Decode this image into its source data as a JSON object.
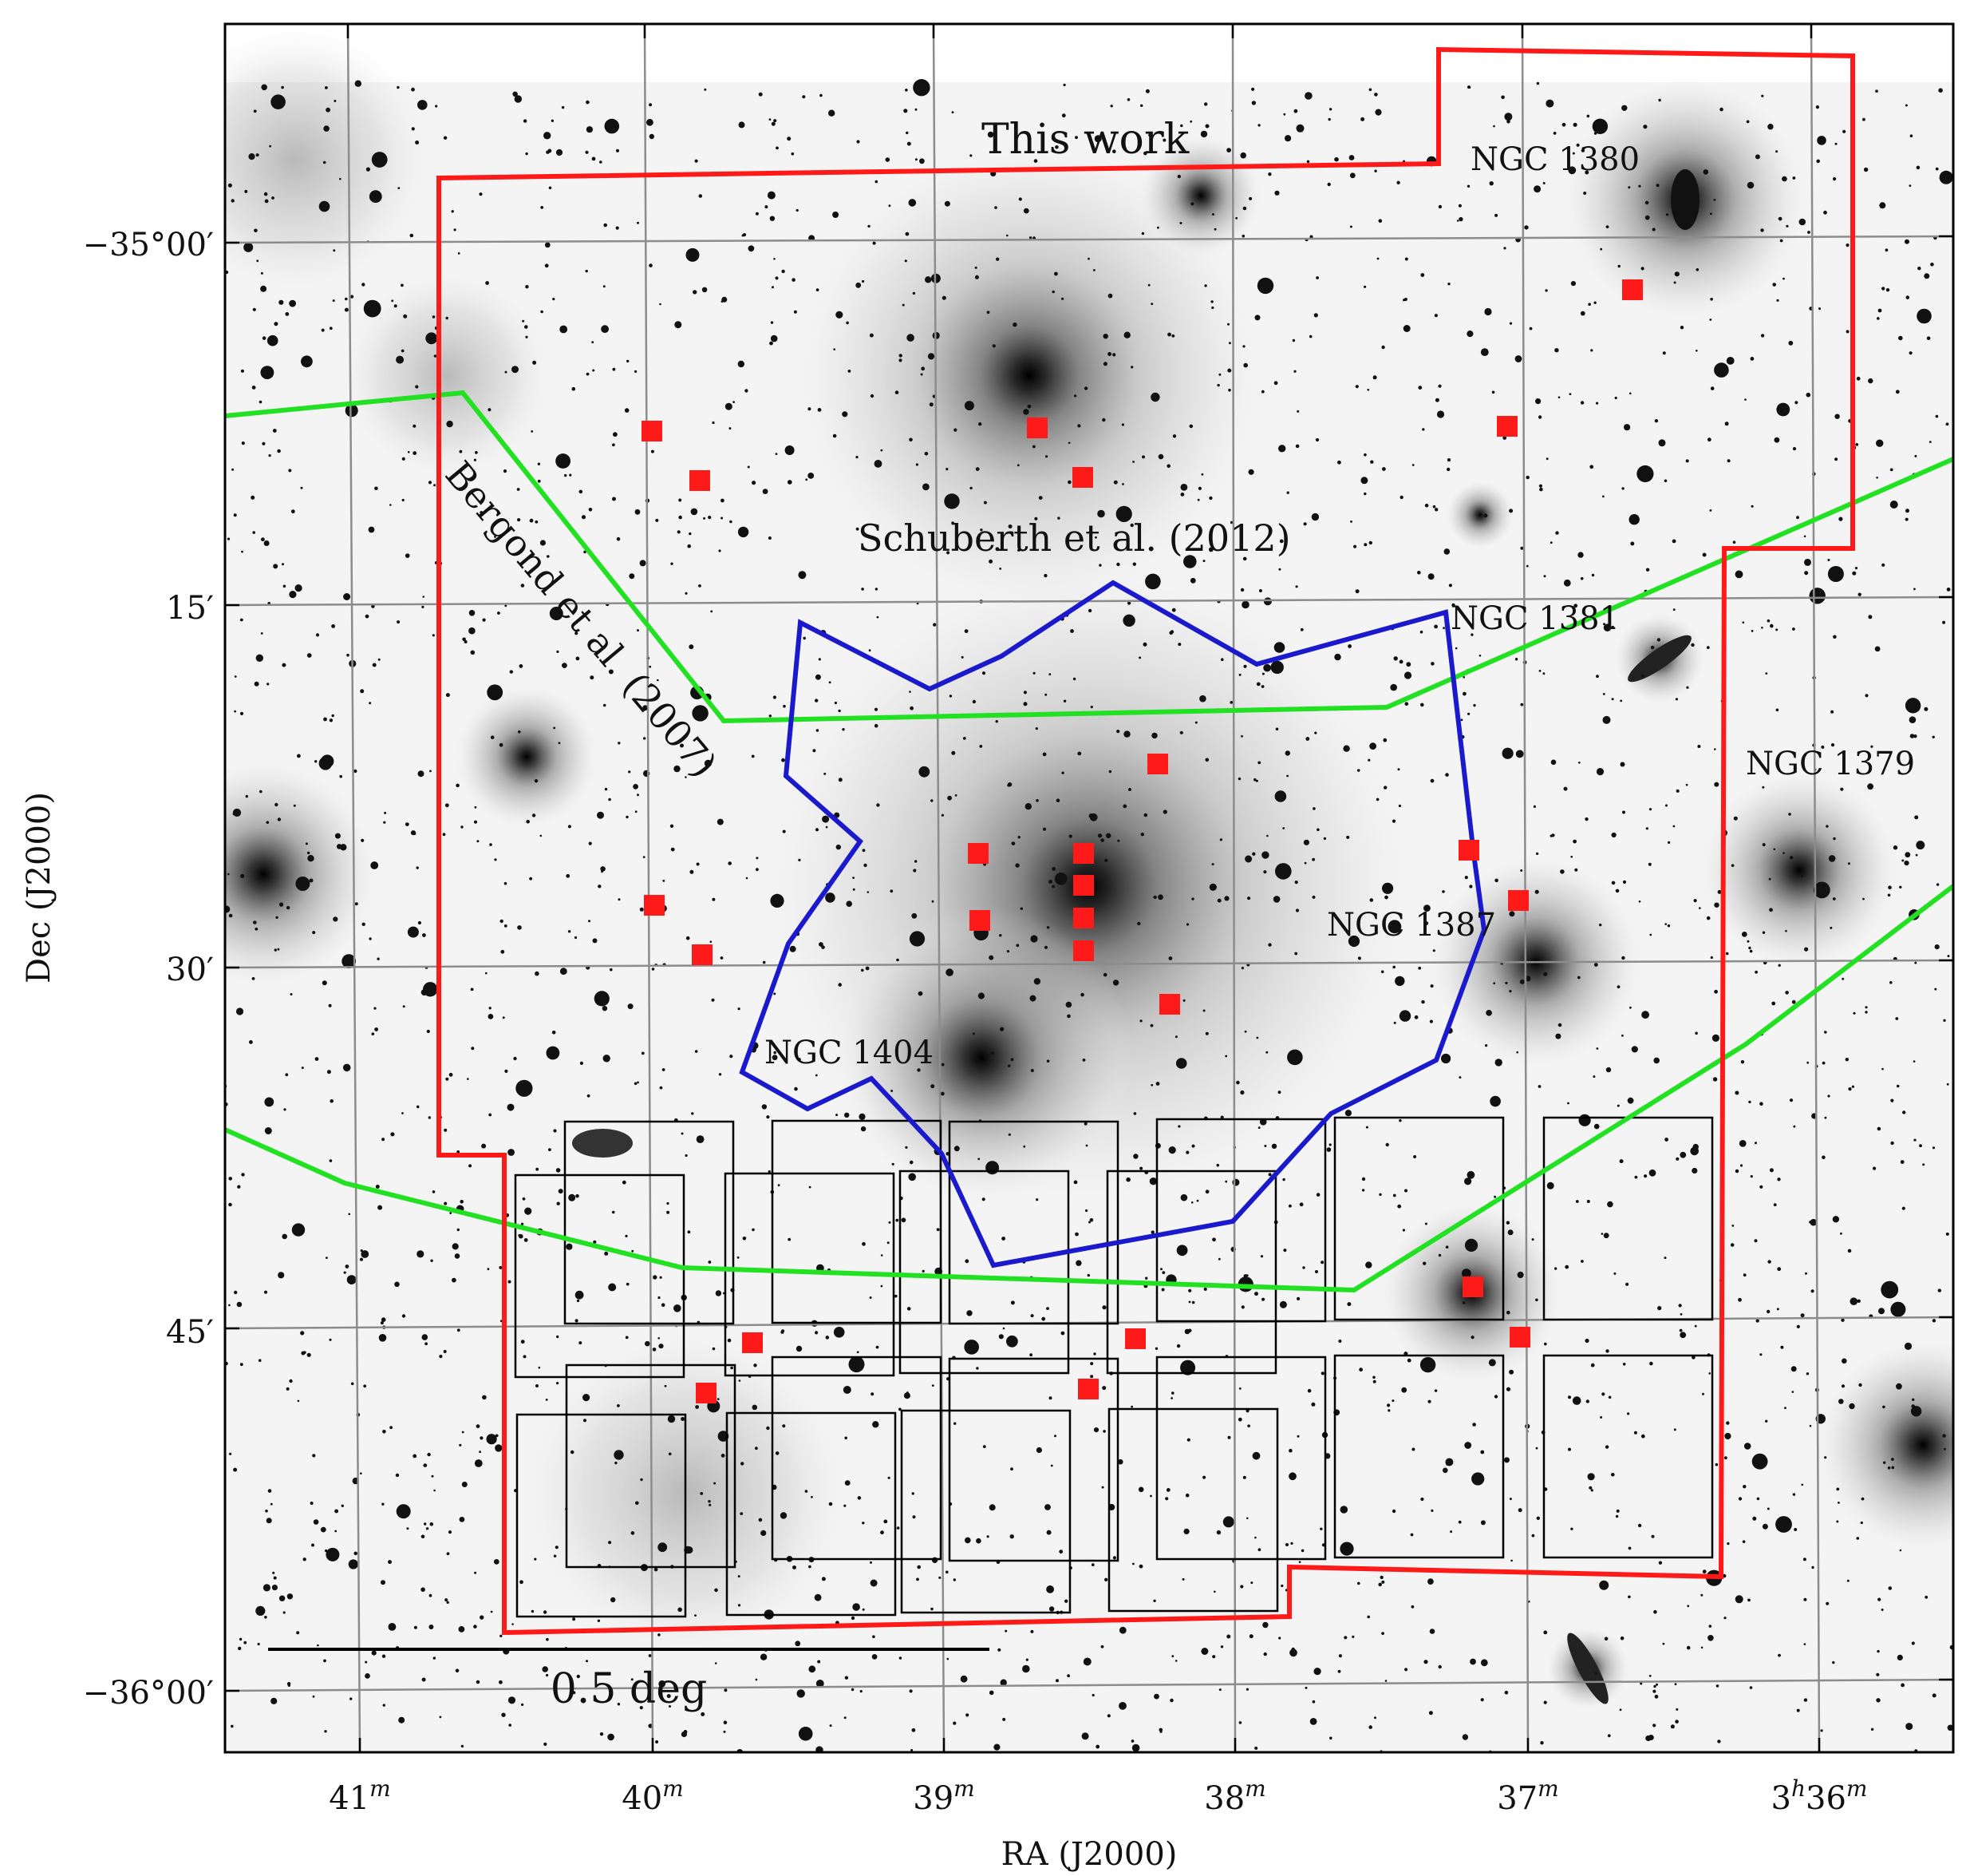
{
  "axes": {
    "xlabel": "RA (J2000)",
    "ylabel": "Dec (J2000)",
    "ra_ticks": [
      {
        "label": "41",
        "unit": "m"
      },
      {
        "label": "40",
        "unit": "m"
      },
      {
        "label": "39",
        "unit": "m"
      },
      {
        "label": "38",
        "unit": "m"
      },
      {
        "label": "37",
        "unit": "m"
      },
      {
        "label": "3",
        "unit": "h",
        "label2": "36",
        "unit2": "m"
      }
    ],
    "dec_ticks": [
      "−35°00′",
      "15′",
      "30′",
      "45′",
      "−36°00′"
    ]
  },
  "surveys": [
    {
      "name": "This work",
      "color": "#ff1a1a"
    },
    {
      "name": "Bergond et al. (2007)",
      "color": "#008a00",
      "line_color": "#22e022"
    },
    {
      "name": "Schuberth et al. (2012)",
      "color": "#1a1acc"
    }
  ],
  "galaxies": [
    "NGC 1380",
    "NGC 1381",
    "NGC 1379",
    "NGC 1387",
    "NGC 1404"
  ],
  "scale_bar": {
    "label": "0.5 deg"
  },
  "colors": {
    "this_work": "#ff1a1a",
    "bergond": "#22e022",
    "schuberth": "#1a1acc",
    "fields": "#000000",
    "grid": "#8c8c8c"
  }
}
